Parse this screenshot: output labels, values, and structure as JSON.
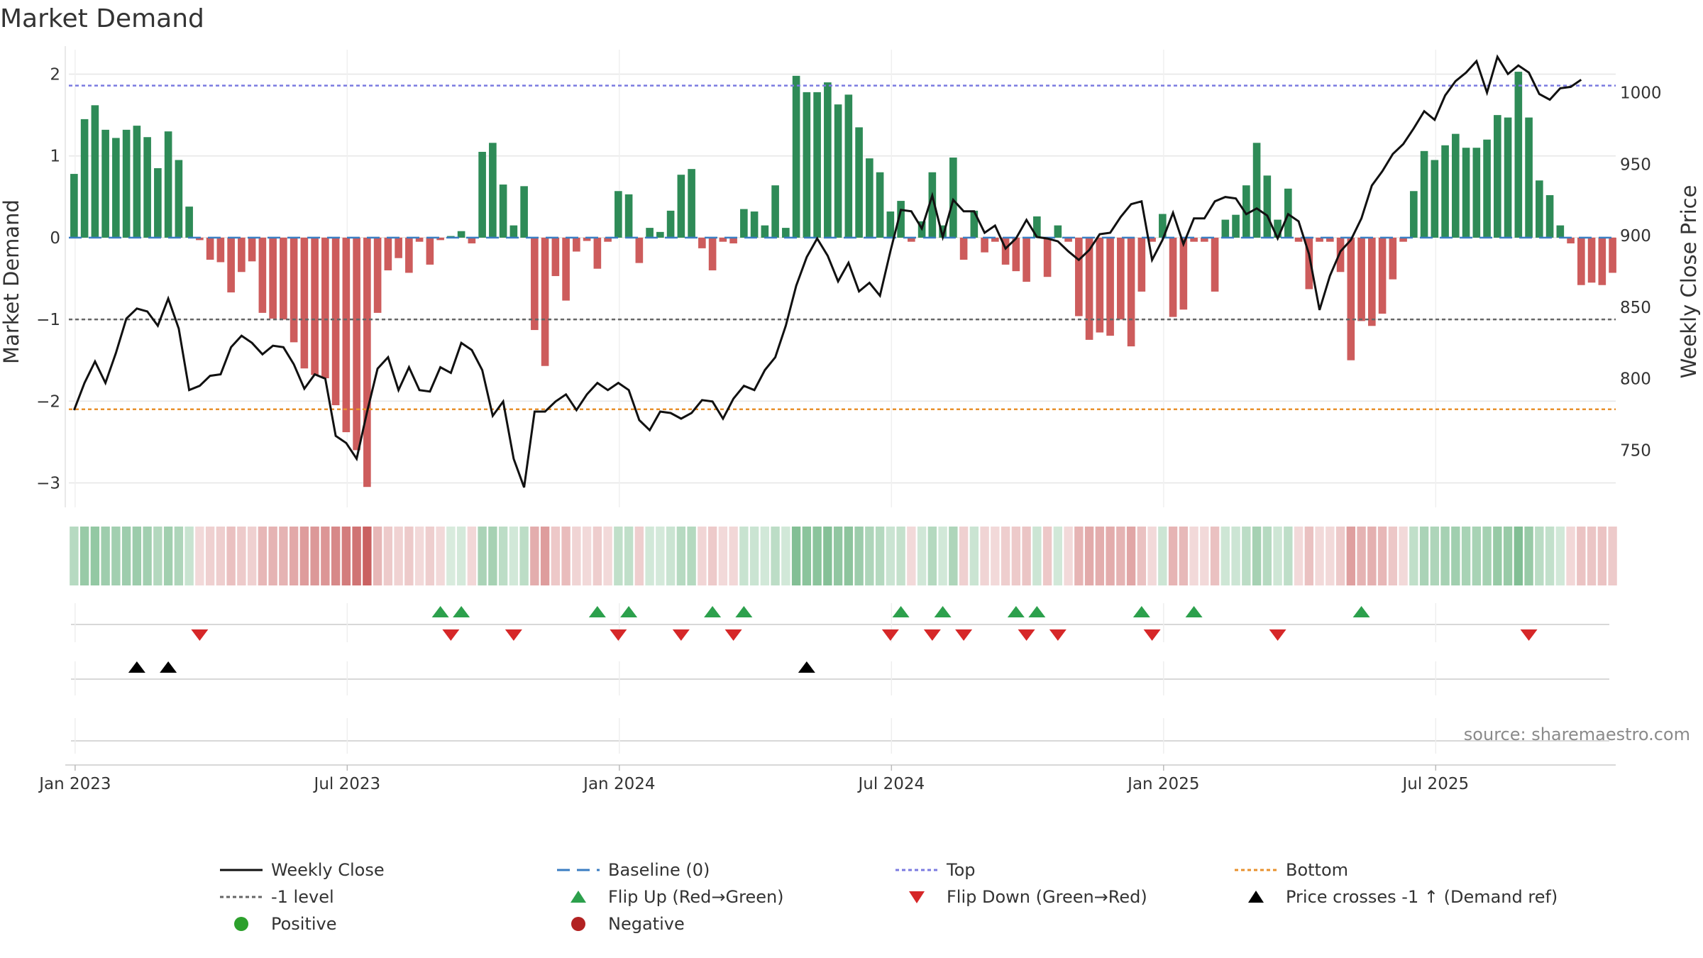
{
  "chart_data": {
    "type": "bar",
    "title": "Market Demand",
    "ylabel_left": "Market Demand",
    "ylabel_right": "Weekly Close Price",
    "ylim_left": [
      -3.3,
      2.3
    ],
    "ylim_right": [
      710,
      1030
    ],
    "yticks_left": [
      "2",
      "1",
      "0",
      "−1",
      "−2",
      "−3"
    ],
    "yticks_left_values": [
      2,
      1,
      0,
      -1,
      -2,
      -3
    ],
    "yticks_right": [
      "1000",
      "950",
      "900",
      "850",
      "800",
      "750"
    ],
    "yticks_right_values": [
      1000,
      950,
      900,
      850,
      800,
      750
    ],
    "x_tick_labels": [
      "Jan 2023",
      "Jul 2023",
      "Jan 2024",
      "Jul 2024",
      "Jan 2025",
      "Jul 2025"
    ],
    "x_tick_weeks": [
      1,
      27,
      53,
      79,
      105,
      131
    ],
    "reference_lines": {
      "top": 1.86,
      "baseline": 0,
      "minus_one": -1,
      "bottom": -2.1
    },
    "demand": [
      0.78,
      1.45,
      1.62,
      1.32,
      1.22,
      1.32,
      1.37,
      1.23,
      0.85,
      1.3,
      0.95,
      0.38,
      -0.03,
      -0.27,
      -0.3,
      -0.67,
      -0.42,
      -0.29,
      -0.92,
      -0.99,
      -1.0,
      -1.28,
      -1.6,
      -1.68,
      -1.72,
      -2.05,
      -2.38,
      -2.6,
      -3.05,
      -0.92,
      -0.4,
      -0.25,
      -0.43,
      -0.05,
      -0.33,
      -0.03,
      0.02,
      0.08,
      -0.07,
      1.05,
      1.16,
      0.65,
      0.15,
      0.63,
      -1.13,
      -1.57,
      -0.47,
      -0.77,
      -0.17,
      -0.04,
      -0.38,
      -0.05,
      0.57,
      0.53,
      -0.31,
      0.12,
      0.07,
      0.33,
      0.77,
      0.84,
      -0.13,
      -0.4,
      -0.05,
      -0.07,
      0.35,
      0.32,
      0.15,
      0.64,
      0.12,
      1.98,
      1.78,
      1.78,
      1.9,
      1.63,
      1.75,
      1.35,
      0.97,
      0.8,
      0.32,
      0.45,
      -0.05,
      0.2,
      0.8,
      0.15,
      0.98,
      -0.27,
      0.33,
      -0.18,
      -0.05,
      -0.33,
      -0.41,
      -0.54,
      0.26,
      -0.48,
      0.15,
      -0.05,
      -0.96,
      -1.25,
      -1.16,
      -1.2,
      -1.0,
      -1.33,
      -0.66,
      -0.05,
      0.29,
      -0.97,
      -0.88,
      -0.05,
      -0.05,
      -0.66,
      0.22,
      0.28,
      0.64,
      1.16,
      0.76,
      0.22,
      0.6,
      -0.05,
      -0.63,
      -0.05,
      -0.05,
      -0.42,
      -1.5,
      -1.02,
      -1.08,
      -0.93,
      -0.51,
      -0.05,
      0.57,
      1.06,
      0.95,
      1.13,
      1.27,
      1.1,
      1.1,
      1.2,
      1.5,
      1.47,
      2.03,
      1.47,
      0.7,
      0.52,
      0.15,
      -0.07,
      -0.58,
      -0.55,
      -0.58,
      -0.43
    ],
    "close": [
      778,
      797,
      812,
      797,
      818,
      842,
      849,
      847,
      837,
      856,
      835,
      792,
      795,
      802,
      803,
      822,
      830,
      825,
      817,
      823,
      822,
      810,
      793,
      803,
      800,
      760,
      755,
      744,
      777,
      807,
      815,
      792,
      808,
      792,
      791,
      808,
      804,
      825,
      820,
      806,
      774,
      784,
      744,
      724,
      777,
      777,
      784,
      789,
      778,
      789,
      797,
      792,
      797,
      792,
      771,
      764,
      777,
      776,
      772,
      776,
      785,
      784,
      772,
      786,
      795,
      792,
      806,
      815,
      837,
      865,
      885,
      898,
      886,
      868,
      881,
      861,
      867,
      858,
      889,
      918,
      917,
      905,
      928,
      899,
      925,
      917,
      917,
      902,
      907,
      891,
      898,
      911,
      899,
      898,
      896,
      889,
      883,
      890,
      901,
      902,
      913,
      922,
      924,
      883,
      897,
      916,
      894,
      912,
      912,
      924,
      927,
      926,
      915,
      919,
      914,
      898,
      915,
      910,
      887,
      848,
      872,
      889,
      897,
      912,
      935,
      945,
      957,
      964,
      975,
      987,
      981,
      998,
      1008,
      1014,
      1022,
      1000,
      1025,
      1013,
      1019,
      1014,
      999,
      995,
      1003,
      1004,
      1009
    ],
    "flip_up_weeks": [
      35,
      37,
      50,
      53,
      61,
      64,
      79,
      83,
      90,
      92,
      102,
      107,
      123
    ],
    "flip_down_weeks": [
      12,
      36,
      42,
      52,
      58,
      63,
      78,
      82,
      85,
      91,
      94,
      103,
      115,
      139
    ],
    "cross_weeks": [
      6,
      9,
      70
    ],
    "legend": [
      {
        "key": "weekly-close",
        "label": "Weekly Close",
        "color": "#111111"
      },
      {
        "key": "baseline",
        "label": "Baseline (0)",
        "color": "#3a7dc2"
      },
      {
        "key": "top",
        "label": "Top",
        "color": "#7b7be0"
      },
      {
        "key": "bottom",
        "label": "Bottom",
        "color": "#e8912d"
      },
      {
        "key": "minus-one",
        "label": "-1 level",
        "color": "#666666"
      },
      {
        "key": "flip-up",
        "label": "Flip Up (Red→Green)",
        "color": "#2ca04c"
      },
      {
        "key": "flip-down",
        "label": "Flip Down (Green→Red)",
        "color": "#d62728"
      },
      {
        "key": "price-cross",
        "label": "Price crosses -1 ↑ (Demand ref)",
        "color": "#000000"
      },
      {
        "key": "positive",
        "label": "Positive",
        "color": "#2ca02c"
      },
      {
        "key": "negative",
        "label": "Negative",
        "color": "#b22222"
      }
    ],
    "source": "source: sharemaestro.com"
  },
  "colors": {
    "positive_bar": "#2e8b57",
    "negative_bar": "#cd5c5c",
    "grid": "#e6e6e6",
    "strip_positive": "#3a9a57",
    "strip_negative": "#c24a4a"
  }
}
